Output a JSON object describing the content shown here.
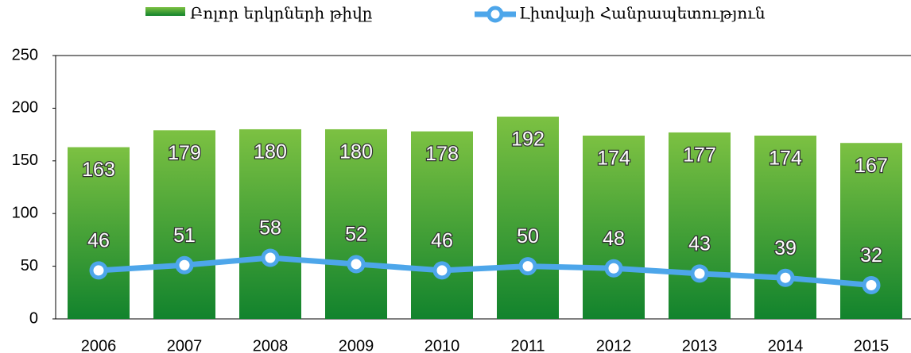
{
  "chart_data": {
    "type": "bar",
    "categories": [
      "2006",
      "2007",
      "2008",
      "2009",
      "2010",
      "2011",
      "2012",
      "2013",
      "2014",
      "2015"
    ],
    "series": [
      {
        "name": "Բոլոր երկրների թիվը",
        "type": "bar",
        "color": "#7cc142",
        "values": [
          163,
          179,
          180,
          180,
          178,
          192,
          174,
          177,
          174,
          167
        ]
      },
      {
        "name": "Լիտվայի Հանրապետություն",
        "type": "line",
        "color": "#4da6ea",
        "values": [
          46,
          51,
          58,
          52,
          46,
          50,
          48,
          43,
          39,
          32
        ]
      }
    ],
    "ylim": [
      0,
      250
    ],
    "yticks": [
      0,
      50,
      100,
      150,
      200,
      250
    ],
    "grid": false,
    "legend": "top"
  }
}
